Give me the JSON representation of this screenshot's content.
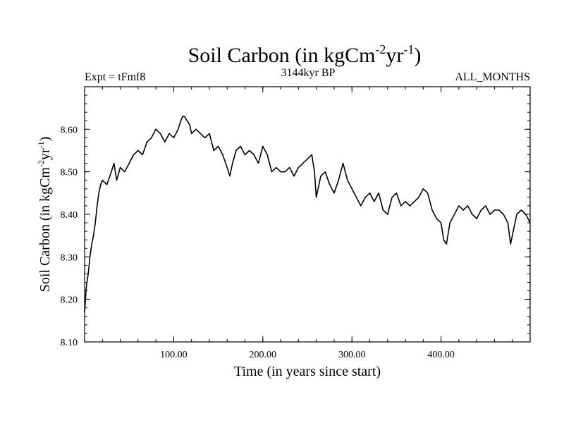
{
  "chart_data": {
    "type": "line",
    "title": {
      "main": "Soil Carbon (in kgCm",
      "sup1": "-2",
      "mid": "yr",
      "sup2": "-1",
      "end": ")"
    },
    "expt_label": "Expt = tFmf8",
    "center_label": "3144kyr BP",
    "right_label": "ALL_MONTHS",
    "xlabel": "Time (in years since start)",
    "ylabel": {
      "main": "Soil Carbon (in kgCm",
      "sup1": "-2",
      "mid": "yr",
      "sup2": "-1",
      "end": ")"
    },
    "xlim": [
      0,
      500
    ],
    "ylim": [
      8.1,
      8.7
    ],
    "x_ticks": [
      100,
      200,
      300,
      400
    ],
    "x_tick_labels": [
      "100.00",
      "200.00",
      "300.00",
      "400.00"
    ],
    "y_ticks": [
      8.1,
      8.2,
      8.3,
      8.4,
      8.5,
      8.6
    ],
    "y_tick_labels": [
      "8.10",
      "8.20",
      "8.30",
      "8.40",
      "8.50",
      "8.60"
    ],
    "series": [
      {
        "name": "Soil Carbon",
        "color": "#000000",
        "x": [
          0,
          2,
          4,
          6,
          8,
          10,
          12,
          14,
          16,
          18,
          20,
          25,
          30,
          33,
          36,
          40,
          45,
          50,
          55,
          60,
          65,
          70,
          75,
          80,
          85,
          90,
          95,
          100,
          105,
          108,
          110,
          112,
          115,
          118,
          120,
          125,
          130,
          135,
          140,
          145,
          150,
          155,
          160,
          163,
          166,
          170,
          175,
          180,
          185,
          190,
          195,
          200,
          205,
          210,
          215,
          220,
          225,
          230,
          235,
          240,
          245,
          250,
          255,
          258,
          260,
          265,
          270,
          275,
          280,
          285,
          290,
          295,
          300,
          305,
          310,
          315,
          320,
          325,
          330,
          335,
          340,
          345,
          350,
          355,
          360,
          365,
          370,
          375,
          380,
          385,
          390,
          395,
          400,
          403,
          406,
          410,
          415,
          420,
          425,
          430,
          435,
          440,
          445,
          450,
          455,
          460,
          465,
          470,
          475,
          478,
          480,
          485,
          490,
          495,
          500
        ],
        "values": [
          8.17,
          8.23,
          8.26,
          8.3,
          8.33,
          8.35,
          8.38,
          8.42,
          8.45,
          8.47,
          8.48,
          8.47,
          8.5,
          8.52,
          8.48,
          8.51,
          8.5,
          8.52,
          8.54,
          8.55,
          8.54,
          8.57,
          8.58,
          8.6,
          8.59,
          8.57,
          8.59,
          8.58,
          8.6,
          8.62,
          8.63,
          8.63,
          8.62,
          8.61,
          8.59,
          8.6,
          8.59,
          8.58,
          8.59,
          8.55,
          8.56,
          8.54,
          8.51,
          8.49,
          8.52,
          8.55,
          8.56,
          8.54,
          8.55,
          8.54,
          8.52,
          8.56,
          8.54,
          8.5,
          8.51,
          8.5,
          8.5,
          8.51,
          8.49,
          8.51,
          8.52,
          8.53,
          8.54,
          8.5,
          8.44,
          8.49,
          8.5,
          8.47,
          8.45,
          8.48,
          8.52,
          8.48,
          8.46,
          8.44,
          8.42,
          8.44,
          8.45,
          8.43,
          8.45,
          8.41,
          8.4,
          8.44,
          8.45,
          8.42,
          8.43,
          8.42,
          8.43,
          8.44,
          8.46,
          8.45,
          8.41,
          8.39,
          8.38,
          8.34,
          8.33,
          8.38,
          8.4,
          8.42,
          8.41,
          8.42,
          8.4,
          8.39,
          8.41,
          8.42,
          8.4,
          8.41,
          8.41,
          8.4,
          8.38,
          8.33,
          8.35,
          8.4,
          8.41,
          8.4,
          8.38
        ]
      }
    ]
  }
}
